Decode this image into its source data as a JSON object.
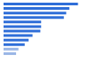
{
  "chart_data": {
    "type": "bar",
    "orientation": "horizontal",
    "categories": [
      null,
      null,
      null,
      null,
      null,
      null,
      null,
      null,
      null,
      null,
      null,
      null
    ],
    "values": [
      95,
      84,
      80,
      77,
      48,
      48,
      47,
      37,
      32,
      27,
      19,
      16
    ],
    "colors": [
      "#2f6ed8",
      "#2f6ed8",
      "#2f6ed8",
      "#2f6ed8",
      "#2f6ed8",
      "#2f6ed8",
      "#2f6ed8",
      "#2f6ed8",
      "#2f6ed8",
      "#2f6ed8",
      "#9ab6e6",
      "#9ab6e6"
    ],
    "xlim": [
      0,
      100
    ],
    "tick_labels": false,
    "grid": false
  }
}
